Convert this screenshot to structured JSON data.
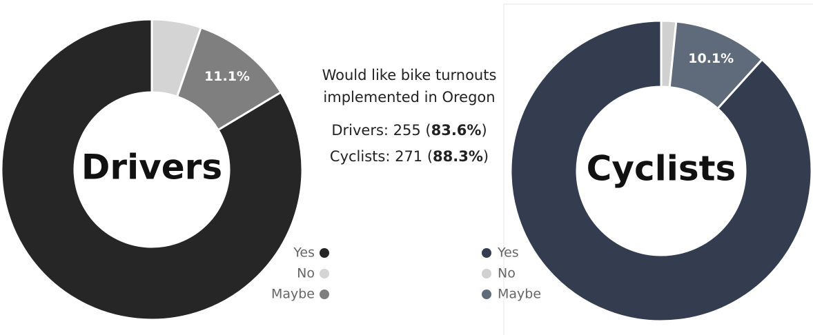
{
  "chart_data": [
    {
      "type": "donut",
      "center_label": "Drivers",
      "categories": [
        "Yes",
        "No",
        "Maybe"
      ],
      "values": [
        83.6,
        5.3,
        11.1
      ],
      "value_labels": [
        null,
        null,
        "11.1%"
      ],
      "colors": [
        "#262626",
        "#d4d4d4",
        "#7f7f7f"
      ],
      "legend": "right"
    },
    {
      "type": "donut",
      "center_label": "Cyclists",
      "categories": [
        "Yes",
        "No",
        "Maybe"
      ],
      "values": [
        88.3,
        1.6,
        10.1
      ],
      "value_labels": [
        null,
        null,
        "10.1%"
      ],
      "colors": [
        "#333d4f",
        "#d0d0d0",
        "#5f6b7a"
      ],
      "legend": "left"
    }
  ],
  "annotation": {
    "title_lines": [
      "Would like bike turnouts",
      "implemented in Oregon"
    ],
    "lines": [
      {
        "text": "Drivers: 255 (",
        "bold": "83.6%",
        "end": ")"
      },
      {
        "text": "Cyclists: 271 (",
        "bold": "88.3%",
        "end": ")"
      }
    ]
  }
}
